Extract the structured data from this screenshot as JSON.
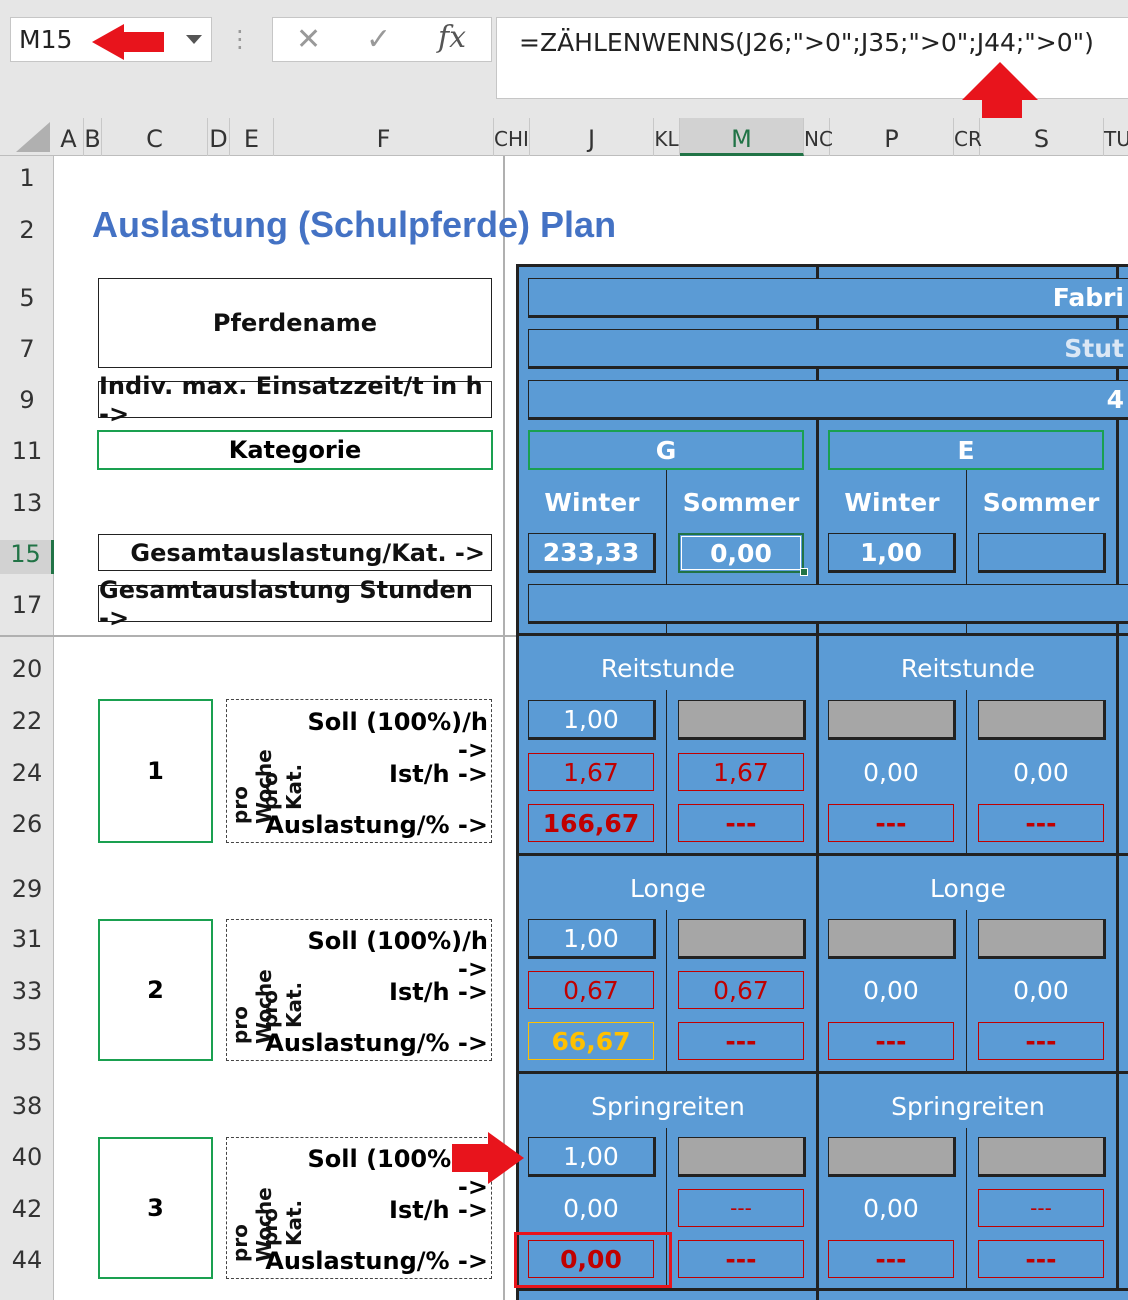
{
  "name_box": "M15",
  "formula": "=ZÄHLENWENNS(J26;\">0\";J35;\">0\";J44;\">0\")",
  "fx_label": "fx",
  "columns": [
    "A",
    "B",
    "C",
    "D",
    "E",
    "F",
    "CHI",
    "J",
    "KL",
    "M",
    "NC",
    "P",
    "CR",
    "S",
    "TU"
  ],
  "rows": [
    "1",
    "2",
    "5",
    "7",
    "9",
    "11",
    "13",
    "15",
    "17",
    "20",
    "22",
    "24",
    "26",
    "29",
    "31",
    "33",
    "35",
    "38",
    "40",
    "42",
    "44"
  ],
  "title": "Auslastung (Schulpferde) Plan",
  "labels": {
    "pferdename": "Pferdename",
    "einsatzzeit": "Indiv. max. Einsatzzeit/t in h ->",
    "kategorie": "Kategorie",
    "gesamt_kat": "Gesamtauslastung/Kat. ->",
    "gesamt_std": "Gesamtauslastung Stunden ->",
    "soll": "Soll (100%)/h ->",
    "ist": "Ist/h ->",
    "auslastung": "Auslastung/% ->",
    "pro_woche": "pro Woche",
    "pro_kat": "pro Kat."
  },
  "header": {
    "fabri": "Fabri",
    "stut": "Stut",
    "four": "4",
    "cat_g": "G",
    "cat_e": "E",
    "winter": "Winter",
    "sommer": "Sommer"
  },
  "totals": {
    "j15": "233,33",
    "m15": "0,00",
    "n15": "1,00"
  },
  "blocks": [
    {
      "num": "1",
      "name": "Reitstunde",
      "soll": [
        "1,00"
      ],
      "ist": [
        "1,67",
        "1,67",
        "0,00",
        "0,00"
      ],
      "aus": [
        "166,67",
        "---",
        "---",
        "---"
      ]
    },
    {
      "num": "2",
      "name": "Longe",
      "soll": [
        "1,00"
      ],
      "ist": [
        "0,67",
        "0,67",
        "0,00",
        "0,00"
      ],
      "aus": [
        "66,67",
        "---",
        "---",
        "---"
      ]
    },
    {
      "num": "3",
      "name": "Springreiten",
      "soll": [
        "1,00"
      ],
      "ist": [
        "0,00",
        "---",
        "0,00",
        "---"
      ],
      "aus": [
        "0,00",
        "---",
        "---",
        "---"
      ]
    }
  ],
  "colors": {
    "blue": "#5b9bd5",
    "green": "#1aa050",
    "red": "#c00000",
    "arrow": "#e8141c",
    "yellow": "#ffc000"
  }
}
